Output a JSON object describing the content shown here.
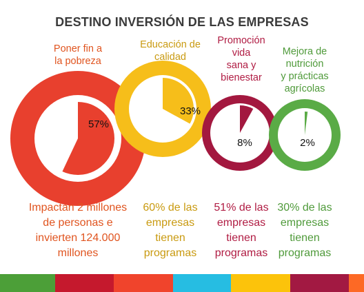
{
  "chart_data": {
    "type": "pie",
    "title": "DESTINO INVERSIÓN DE LAS EMPRESAS",
    "series": [
      {
        "name": "Poner fin a la pobreza",
        "value": 57,
        "value_label": "57%",
        "color": "#e8402e",
        "label_lines": [
          "Poner fin a",
          "la pobreza"
        ],
        "description_lines": [
          "Impactan 2 millones",
          "de personas e",
          "invierten 124.000",
          "millones"
        ]
      },
      {
        "name": "Educación de calidad",
        "value": 33,
        "value_label": "33%",
        "color": "#f6be1a",
        "label_lines": [
          "Educación de",
          "calidad"
        ],
        "description_lines": [
          "60% de las",
          "empresas",
          "tienen",
          "programas"
        ]
      },
      {
        "name": "Promoción vida sana y bienestar",
        "value": 8,
        "value_label": "8%",
        "color": "#a3183f",
        "label_lines": [
          "Promoción",
          "vida",
          "sana y",
          "bienestar"
        ],
        "description_lines": [
          "51% de las",
          "empresas",
          "tienen",
          "programas"
        ]
      },
      {
        "name": "Mejora de nutrición y prácticas agrícolas",
        "value": 2,
        "value_label": "2%",
        "color": "#5aab46",
        "label_lines": [
          "Mejora de",
          "nutrición",
          "y prácticas",
          "agrícolas"
        ],
        "description_lines": [
          "30% de las",
          "empresas",
          "tienen",
          "programas"
        ]
      }
    ]
  },
  "label_colors": [
    "#e0541f",
    "#c99a10",
    "#b01c43",
    "#4f9a3a"
  ],
  "footer_colors": [
    "#4c9f38",
    "#c5192d",
    "#f0442c",
    "#26bde2",
    "#fcc30b",
    "#a21942",
    "#fd6925"
  ]
}
